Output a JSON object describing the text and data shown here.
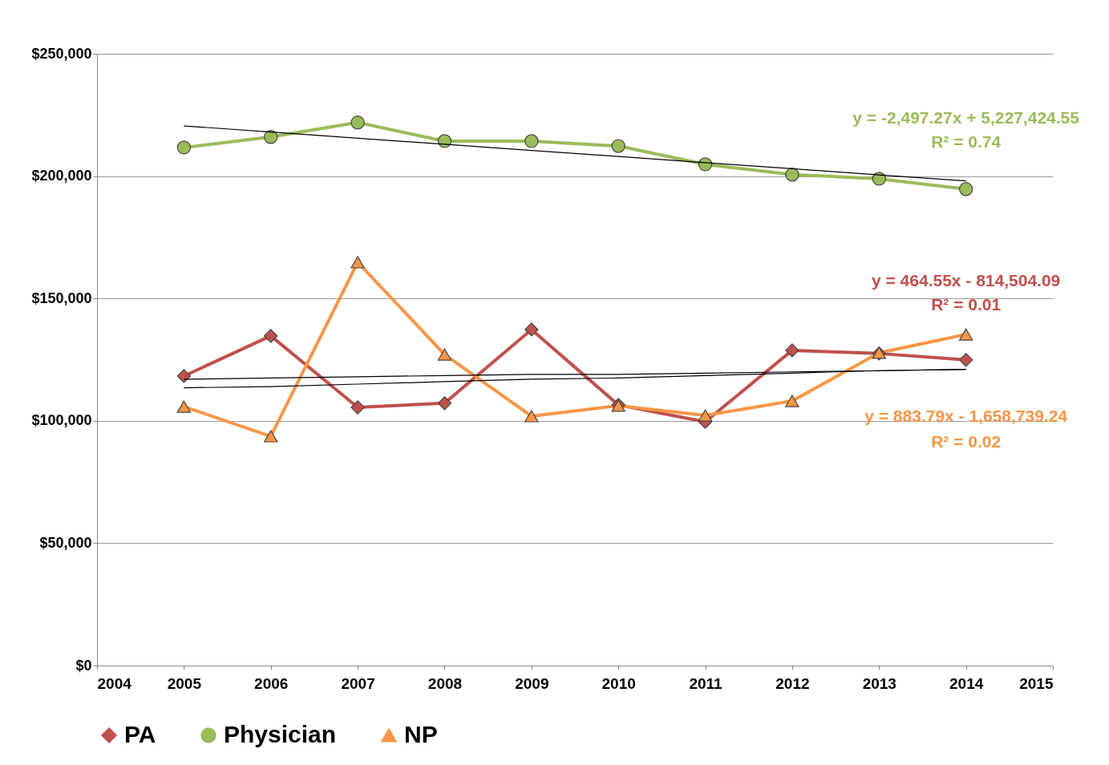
{
  "chart_data": {
    "type": "line",
    "x": [
      2005,
      2006,
      2007,
      2008,
      2009,
      2010,
      2011,
      2012,
      2013,
      2014
    ],
    "series": [
      {
        "name": "PA",
        "color": "#c0504d",
        "marker": "diamond",
        "values": [
          118300,
          134700,
          105500,
          107200,
          137300,
          106500,
          99600,
          128800,
          127500,
          124900
        ]
      },
      {
        "name": "Physician",
        "color": "#9bbb59",
        "marker": "circle",
        "values": [
          211700,
          216000,
          221900,
          214300,
          214300,
          212300,
          204800,
          200600,
          198900,
          194700
        ]
      },
      {
        "name": "NP",
        "color": "#f79646",
        "marker": "triangle",
        "values": [
          105800,
          93700,
          164800,
          127100,
          101900,
          106200,
          102200,
          108100,
          127800,
          135300
        ]
      },
      {
        "type": "line",
        "color": "#000000",
        "values": [
          117000,
          117500,
          118000,
          118500,
          119000,
          119000,
          119500,
          120000,
          120500,
          121000
        ]
      },
      {
        "type": "line",
        "color": "#000000",
        "values": [
          220500,
          218000,
          215500,
          213000,
          210500,
          208000,
          205500,
          203000,
          200500,
          198000
        ]
      },
      {
        "type": "line",
        "color": "#000000",
        "values": [
          113500,
          114000,
          115000,
          116000,
          117000,
          117500,
          118500,
          119500,
          120500,
          121000
        ]
      }
    ],
    "xlim": [
      2004,
      2015
    ],
    "xticks": [
      2004,
      2005,
      2006,
      2007,
      2008,
      2009,
      2010,
      2011,
      2012,
      2013,
      2014,
      2015
    ],
    "ylim": [
      0,
      250000
    ],
    "yticks": [
      {
        "value": 0,
        "label": "$0"
      },
      {
        "value": 50000,
        "label": "$50,000"
      },
      {
        "value": 100000,
        "label": "$100,000"
      },
      {
        "value": 150000,
        "label": "$150,000"
      },
      {
        "value": 200000,
        "label": "$200,000"
      },
      {
        "value": 250000,
        "label": "$250,000"
      }
    ],
    "grid": "y",
    "legend": "bottom",
    "annotations": [
      "y = -2,497.27x + 5,227,424.55",
      "R² = 0.74",
      "y = 464.55x - 814,504.09",
      "R² = 0.01",
      "y = 883.79x - 1,658,739.24",
      "R² = 0.02"
    ]
  }
}
